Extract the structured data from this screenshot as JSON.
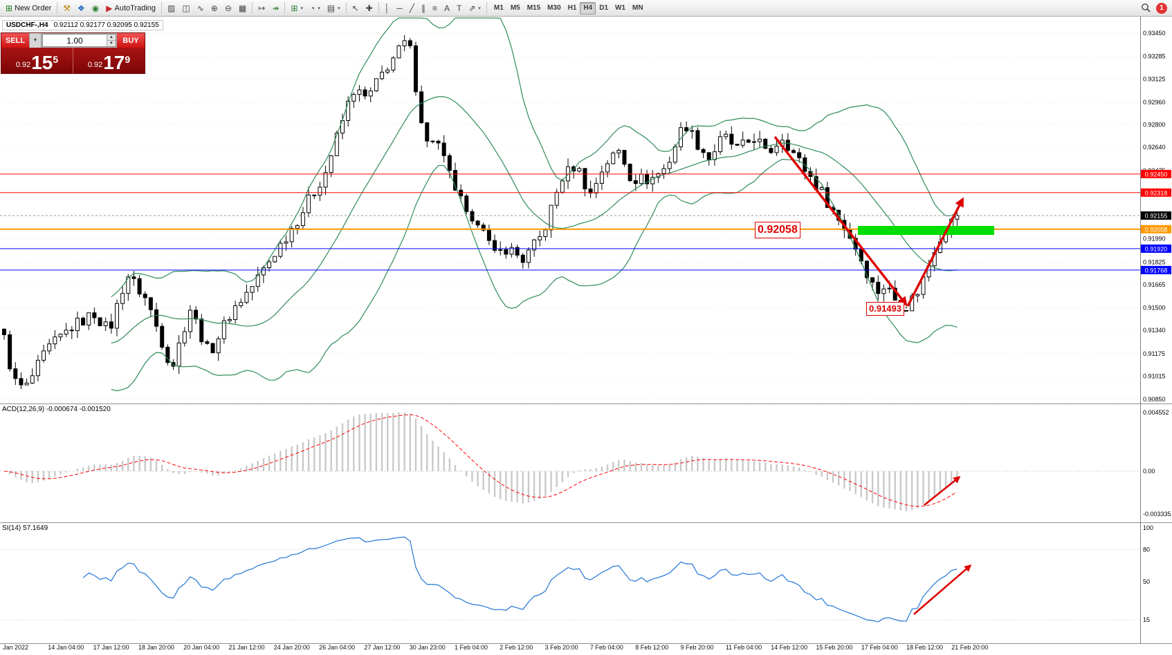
{
  "colors": {
    "bollinger": "#2e8b57",
    "arrow": "#dd0000",
    "highlight": "#00dd00",
    "macd_hist": "#c9c9c9",
    "macd_signal": "#ff0000",
    "rsi_line": "#2f7ed8"
  },
  "icons": {
    "caret": "▾",
    "order_type_dropdown": "▼",
    "spin_up": "▲",
    "spin_down": "▼"
  },
  "toolbar": {
    "items": [
      {
        "type": "button",
        "name": "new-order-button",
        "glyph": "⊞",
        "color": "#1b7a1b",
        "label": "New Order"
      },
      {
        "type": "sep"
      },
      {
        "type": "icon",
        "name": "styler-icon",
        "glyph": "⚒",
        "color": "#b8860b"
      },
      {
        "type": "icon",
        "name": "profiles-icon",
        "glyph": "❖",
        "color": "#1565c0"
      },
      {
        "type": "icon",
        "name": "market-watch-icon",
        "glyph": "◉",
        "color": "#2e7d32"
      },
      {
        "type": "button",
        "name": "autotrading-button",
        "glyph": "▶",
        "color": "#c62828",
        "label": "AutoTrading"
      },
      {
        "type": "sep"
      },
      {
        "type": "icon",
        "name": "bar-chart-icon",
        "glyph": "▥",
        "color": "#444444"
      },
      {
        "type": "icon",
        "name": "candlestick-chart-icon",
        "glyph": "◫",
        "color": "#444444"
      },
      {
        "type": "icon",
        "name": "line-chart-icon",
        "glyph": "∿",
        "color": "#444444"
      },
      {
        "type": "icon",
        "name": "zoom-in-icon",
        "glyph": "⊕",
        "color": "#444444"
      },
      {
        "type": "icon",
        "name": "zoom-out-icon",
        "glyph": "⊖",
        "color": "#444444"
      },
      {
        "type": "icon",
        "name": "tile-windows-icon",
        "glyph": "▦",
        "color": "#444444"
      },
      {
        "type": "sep"
      },
      {
        "type": "icon",
        "name": "chart-shift-icon",
        "glyph": "↦",
        "color": "#444444"
      },
      {
        "type": "icon",
        "name": "auto-scroll-icon",
        "glyph": "↠",
        "color": "#2e7d32"
      },
      {
        "type": "sep"
      },
      {
        "type": "icon",
        "name": "new-chart-icon",
        "glyph": "⊞",
        "color": "#2e7d32",
        "caret": true
      },
      {
        "type": "icon",
        "name": "period-icon",
        "glyph": "◔",
        "color": "#444444",
        "caret": true
      },
      {
        "type": "icon",
        "name": "template-icon",
        "glyph": "▤",
        "color": "#444444",
        "caret": true
      },
      {
        "type": "sep"
      },
      {
        "type": "icon",
        "name": "cursor-icon",
        "glyph": "↖",
        "color": "#444444"
      },
      {
        "type": "icon",
        "name": "crosshair-icon",
        "glyph": "✚",
        "color": "#444444"
      },
      {
        "type": "sep"
      },
      {
        "type": "icon",
        "name": "vertical-line-icon",
        "glyph": "│",
        "color": "#444444"
      },
      {
        "type": "icon",
        "name": "horizontal-line-icon",
        "glyph": "─",
        "color": "#444444"
      },
      {
        "type": "icon",
        "name": "trendline-icon",
        "glyph": "╱",
        "color": "#444444"
      },
      {
        "type": "icon",
        "name": "channel-icon",
        "glyph": "∥",
        "color": "#444444"
      },
      {
        "type": "icon",
        "name": "fibonacci-icon",
        "glyph": "≡",
        "color": "#444444"
      },
      {
        "type": "icon",
        "name": "text-icon",
        "glyph": "A",
        "color": "#444444"
      },
      {
        "type": "icon",
        "name": "label-icon",
        "glyph": "T",
        "color": "#444444"
      },
      {
        "type": "icon",
        "name": "arrows-icon",
        "glyph": "⇗",
        "color": "#444444",
        "caret": true
      },
      {
        "type": "sep"
      }
    ],
    "timeframes": [
      "M1",
      "M5",
      "M15",
      "M30",
      "H1",
      "H4",
      "D1",
      "W1",
      "MN"
    ],
    "active_timeframe": "H4",
    "notification_count": "1"
  },
  "symbol_info": {
    "title": "USDCHF-,H4",
    "ohlc": "0.92112 0.92177 0.92095 0.92155"
  },
  "trade_panel": {
    "sell_label": "SELL",
    "buy_label": "BUY",
    "volume": "1.00",
    "sell_price": {
      "prefix": "0.92",
      "big": "15",
      "sup": "5"
    },
    "buy_price": {
      "prefix": "0.92",
      "big": "17",
      "sup": "9"
    }
  },
  "chart_data": {
    "type": "candlestick",
    "symbol": "USDCHF-",
    "timeframe": "H4",
    "num_candles": 170,
    "price_path": [
      [
        0.0,
        0.9128
      ],
      [
        0.01,
        0.9098
      ],
      [
        0.022,
        0.9092
      ],
      [
        0.045,
        0.912
      ],
      [
        0.07,
        0.9136
      ],
      [
        0.095,
        0.9146
      ],
      [
        0.11,
        0.9133
      ],
      [
        0.129,
        0.9174
      ],
      [
        0.15,
        0.9155
      ],
      [
        0.176,
        0.9107
      ],
      [
        0.195,
        0.915
      ],
      [
        0.215,
        0.9117
      ],
      [
        0.239,
        0.9148
      ],
      [
        0.26,
        0.9165
      ],
      [
        0.283,
        0.9188
      ],
      [
        0.31,
        0.9215
      ],
      [
        0.337,
        0.9246
      ],
      [
        0.366,
        0.9305
      ],
      [
        0.381,
        0.9298
      ],
      [
        0.4,
        0.932
      ],
      [
        0.424,
        0.9341
      ],
      [
        0.435,
        0.9295
      ],
      [
        0.443,
        0.9266
      ],
      [
        0.452,
        0.9272
      ],
      [
        0.465,
        0.9248
      ],
      [
        0.478,
        0.9228
      ],
      [
        0.49,
        0.9206
      ],
      [
        0.5,
        0.9216
      ],
      [
        0.513,
        0.9186
      ],
      [
        0.528,
        0.9193
      ],
      [
        0.545,
        0.9184
      ],
      [
        0.565,
        0.9202
      ],
      [
        0.585,
        0.9242
      ],
      [
        0.6,
        0.9252
      ],
      [
        0.615,
        0.923
      ],
      [
        0.63,
        0.9252
      ],
      [
        0.646,
        0.9262
      ],
      [
        0.658,
        0.9242
      ],
      [
        0.678,
        0.9241
      ],
      [
        0.695,
        0.925
      ],
      [
        0.714,
        0.9282
      ],
      [
        0.726,
        0.9268
      ],
      [
        0.74,
        0.9256
      ],
      [
        0.755,
        0.9272
      ],
      [
        0.77,
        0.9262
      ],
      [
        0.789,
        0.9272
      ],
      [
        0.8,
        0.9258
      ],
      [
        0.817,
        0.9272
      ],
      [
        0.83,
        0.9258
      ],
      [
        0.845,
        0.9244
      ],
      [
        0.86,
        0.923
      ],
      [
        0.875,
        0.9213
      ],
      [
        0.885,
        0.9204
      ],
      [
        0.895,
        0.9191
      ],
      [
        0.905,
        0.9176
      ],
      [
        0.915,
        0.9161
      ],
      [
        0.925,
        0.9166
      ],
      [
        0.935,
        0.9156
      ],
      [
        0.945,
        0.915
      ],
      [
        0.958,
        0.9161
      ],
      [
        0.968,
        0.9176
      ],
      [
        0.978,
        0.9196
      ],
      [
        0.988,
        0.9206
      ],
      [
        1.0,
        0.92155
      ]
    ],
    "indicators": {
      "bollinger": {
        "period": 20,
        "deviation": 2
      },
      "macd": {
        "fast": 12,
        "slow": 26,
        "signal": 9
      },
      "rsi": {
        "period": 14
      }
    },
    "price_axis_ticks": [
      "0.93450",
      "0.93285",
      "0.93125",
      "0.92960",
      "0.92800",
      "0.92640",
      "0.92475",
      "0.91990",
      "0.91825",
      "0.91665",
      "0.91500",
      "0.91340",
      "0.91175",
      "0.91015",
      "0.90850"
    ],
    "levels": [
      {
        "price": 0.9245,
        "label": "0.92450",
        "color": "#ff0000"
      },
      {
        "price": 0.92318,
        "label": "0.92318",
        "color": "#ff0000"
      },
      {
        "price": 0.92058,
        "label": "0.92058",
        "color": "#ff9800"
      },
      {
        "price": 0.9192,
        "label": "0.91920",
        "color": "#0000ff"
      },
      {
        "price": 0.91768,
        "label": "0.91768",
        "color": "#0000ff"
      }
    ],
    "current_price": {
      "value": 0.92155,
      "label": "0.92155"
    },
    "annotations": {
      "level_label": "0.92058",
      "support_label": "0.91493",
      "support_price": 0.91493
    },
    "time_axis": [
      "Jan 2022",
      "14 Jan 04:00",
      "17 Jan 12:00",
      "18 Jan 20:00",
      "20 Jan 04:00",
      "21 Jan 12:00",
      "24 Jan 20:00",
      "26 Jan 04:00",
      "27 Jan 12:00",
      "30 Jan 23:00",
      "1 Feb 04:00",
      "2 Feb 12:00",
      "3 Feb 20:00",
      "7 Feb 04:00",
      "8 Feb 12:00",
      "9 Feb 20:00",
      "11 Feb 04:00",
      "14 Feb 12:00",
      "15 Feb 20:00",
      "17 Feb 04:00",
      "18 Feb 12:00",
      "21 Feb 20:00"
    ]
  },
  "macd_panel": {
    "label": "ACD(12,26,9) -0.000674 -0.001520",
    "axis": [
      "0.004552",
      "0.00",
      "-0.003335"
    ]
  },
  "rsi_panel": {
    "label": "SI(14) 57.1649",
    "axis": [
      "100",
      "80",
      "50",
      "15"
    ],
    "level_lines": [
      80,
      15
    ]
  }
}
